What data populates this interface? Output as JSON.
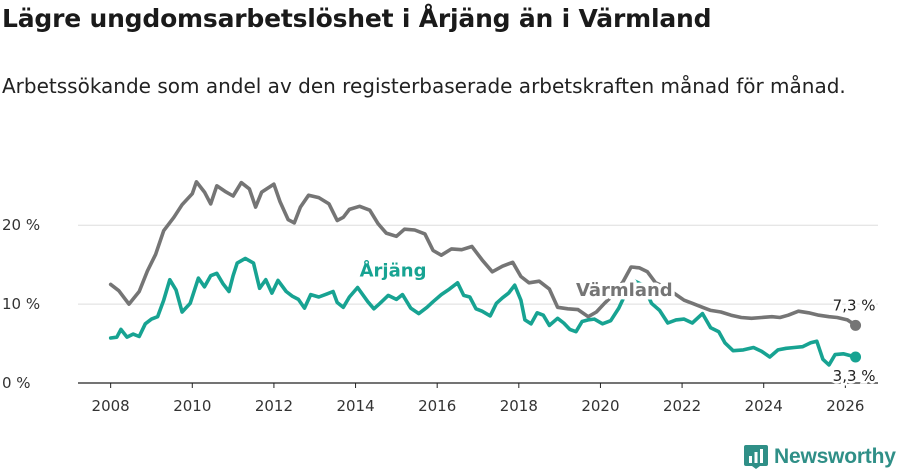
{
  "header": {
    "title": "Lägre ungdomsarbetslöshet i Årjäng än i Värmland",
    "subtitle": "Arbetssökande som andel av den registerbaserade arbetskraften månad för månad."
  },
  "branding": {
    "name": "Newsworthy",
    "icon": "newsworthy-logo-icon"
  },
  "colors": {
    "arjang": "#17a392",
    "varmland": "#757575",
    "grid": "#dddddd",
    "axis": "#222222"
  },
  "chart_data": {
    "type": "line",
    "title": "Lägre ungdomsarbetslöshet i Årjäng än i Värmland",
    "subtitle": "Arbetssökande som andel av den registerbaserade arbetskraften månad för månad.",
    "xlabel": "",
    "ylabel": "",
    "xlim": [
      2007.2,
      2026.8
    ],
    "ylim": [
      0,
      27
    ],
    "y_ticks": [
      0,
      10,
      20
    ],
    "y_tick_labels": [
      "0 %",
      "10 %",
      "20 %"
    ],
    "x_ticks": [
      2008,
      2010,
      2012,
      2014,
      2016,
      2018,
      2020,
      2022,
      2024,
      2026
    ],
    "x_tick_labels": [
      "2008",
      "2010",
      "2012",
      "2014",
      "2016",
      "2018",
      "2020",
      "2022",
      "2024",
      "2026"
    ],
    "grid": true,
    "legend": "inline labels",
    "series": [
      {
        "name": "Värmland",
        "label": "Värmland",
        "color": "#757575",
        "end_label": "7,3 %",
        "points": [
          [
            2008.0,
            12.5
          ],
          [
            2008.2,
            11.7
          ],
          [
            2008.45,
            10.0
          ],
          [
            2008.7,
            11.6
          ],
          [
            2008.9,
            14.2
          ],
          [
            2009.1,
            16.3
          ],
          [
            2009.3,
            19.3
          ],
          [
            2009.55,
            21.0
          ],
          [
            2009.75,
            22.6
          ],
          [
            2010.0,
            24.0
          ],
          [
            2010.1,
            25.5
          ],
          [
            2010.3,
            24.2
          ],
          [
            2010.45,
            22.7
          ],
          [
            2010.6,
            25.0
          ],
          [
            2010.8,
            24.3
          ],
          [
            2011.0,
            23.7
          ],
          [
            2011.2,
            25.4
          ],
          [
            2011.4,
            24.6
          ],
          [
            2011.55,
            22.3
          ],
          [
            2011.7,
            24.2
          ],
          [
            2011.85,
            24.7
          ],
          [
            2012.0,
            25.2
          ],
          [
            2012.15,
            23.0
          ],
          [
            2012.35,
            20.7
          ],
          [
            2012.5,
            20.3
          ],
          [
            2012.65,
            22.3
          ],
          [
            2012.85,
            23.8
          ],
          [
            2013.1,
            23.5
          ],
          [
            2013.35,
            22.7
          ],
          [
            2013.55,
            20.6
          ],
          [
            2013.7,
            21.0
          ],
          [
            2013.85,
            22.0
          ],
          [
            2014.1,
            22.4
          ],
          [
            2014.35,
            21.9
          ],
          [
            2014.55,
            20.2
          ],
          [
            2014.75,
            19.0
          ],
          [
            2015.0,
            18.6
          ],
          [
            2015.2,
            19.5
          ],
          [
            2015.45,
            19.4
          ],
          [
            2015.7,
            18.9
          ],
          [
            2015.9,
            16.8
          ],
          [
            2016.1,
            16.2
          ],
          [
            2016.35,
            17.0
          ],
          [
            2016.6,
            16.9
          ],
          [
            2016.85,
            17.3
          ],
          [
            2017.1,
            15.6
          ],
          [
            2017.35,
            14.1
          ],
          [
            2017.6,
            14.8
          ],
          [
            2017.85,
            15.3
          ],
          [
            2018.05,
            13.5
          ],
          [
            2018.25,
            12.7
          ],
          [
            2018.5,
            12.9
          ],
          [
            2018.75,
            11.9
          ],
          [
            2018.95,
            9.6
          ],
          [
            2019.2,
            9.4
          ],
          [
            2019.45,
            9.3
          ],
          [
            2019.7,
            8.4
          ],
          [
            2019.9,
            9.0
          ],
          [
            2020.1,
            10.1
          ],
          [
            2020.3,
            11.1
          ],
          [
            2020.55,
            12.8
          ],
          [
            2020.75,
            14.7
          ],
          [
            2020.95,
            14.6
          ],
          [
            2021.15,
            14.1
          ],
          [
            2021.35,
            12.7
          ],
          [
            2021.6,
            12.1
          ],
          [
            2021.85,
            11.2
          ],
          [
            2022.05,
            10.5
          ],
          [
            2022.25,
            10.1
          ],
          [
            2022.5,
            9.6
          ],
          [
            2022.7,
            9.2
          ],
          [
            2022.95,
            9.0
          ],
          [
            2023.2,
            8.6
          ],
          [
            2023.45,
            8.3
          ],
          [
            2023.7,
            8.2
          ],
          [
            2023.95,
            8.3
          ],
          [
            2024.2,
            8.4
          ],
          [
            2024.4,
            8.3
          ],
          [
            2024.6,
            8.6
          ],
          [
            2024.85,
            9.1
          ],
          [
            2025.1,
            8.9
          ],
          [
            2025.35,
            8.6
          ],
          [
            2025.6,
            8.4
          ],
          [
            2025.8,
            8.3
          ],
          [
            2026.05,
            8.0
          ],
          [
            2026.25,
            7.3
          ]
        ]
      },
      {
        "name": "Årjäng",
        "label": "Årjäng",
        "color": "#17a392",
        "end_label": "3,3 %",
        "points": [
          [
            2008.0,
            5.7
          ],
          [
            2008.15,
            5.8
          ],
          [
            2008.25,
            6.8
          ],
          [
            2008.4,
            5.8
          ],
          [
            2008.55,
            6.2
          ],
          [
            2008.7,
            5.9
          ],
          [
            2008.85,
            7.5
          ],
          [
            2009.0,
            8.1
          ],
          [
            2009.15,
            8.4
          ],
          [
            2009.3,
            10.5
          ],
          [
            2009.45,
            13.1
          ],
          [
            2009.6,
            11.8
          ],
          [
            2009.75,
            9.0
          ],
          [
            2009.95,
            10.1
          ],
          [
            2010.15,
            13.3
          ],
          [
            2010.3,
            12.2
          ],
          [
            2010.45,
            13.6
          ],
          [
            2010.6,
            13.9
          ],
          [
            2010.75,
            12.6
          ],
          [
            2010.9,
            11.6
          ],
          [
            2011.0,
            13.6
          ],
          [
            2011.1,
            15.2
          ],
          [
            2011.3,
            15.8
          ],
          [
            2011.5,
            15.2
          ],
          [
            2011.65,
            12.0
          ],
          [
            2011.8,
            13.1
          ],
          [
            2011.95,
            11.4
          ],
          [
            2012.1,
            13.0
          ],
          [
            2012.3,
            11.6
          ],
          [
            2012.45,
            11.0
          ],
          [
            2012.6,
            10.6
          ],
          [
            2012.75,
            9.5
          ],
          [
            2012.9,
            11.2
          ],
          [
            2013.1,
            10.9
          ],
          [
            2013.3,
            11.3
          ],
          [
            2013.45,
            11.6
          ],
          [
            2013.55,
            10.2
          ],
          [
            2013.7,
            9.6
          ],
          [
            2013.85,
            10.9
          ],
          [
            2014.05,
            12.1
          ],
          [
            2014.3,
            10.3
          ],
          [
            2014.45,
            9.4
          ],
          [
            2014.6,
            10.1
          ],
          [
            2014.8,
            11.1
          ],
          [
            2015.0,
            10.6
          ],
          [
            2015.15,
            11.2
          ],
          [
            2015.35,
            9.5
          ],
          [
            2015.55,
            8.8
          ],
          [
            2015.75,
            9.6
          ],
          [
            2015.9,
            10.3
          ],
          [
            2016.1,
            11.2
          ],
          [
            2016.3,
            11.9
          ],
          [
            2016.5,
            12.7
          ],
          [
            2016.65,
            11.1
          ],
          [
            2016.8,
            10.9
          ],
          [
            2016.95,
            9.4
          ],
          [
            2017.1,
            9.1
          ],
          [
            2017.3,
            8.5
          ],
          [
            2017.45,
            10.1
          ],
          [
            2017.6,
            10.8
          ],
          [
            2017.75,
            11.4
          ],
          [
            2017.9,
            12.4
          ],
          [
            2018.05,
            10.5
          ],
          [
            2018.15,
            8.0
          ],
          [
            2018.3,
            7.5
          ],
          [
            2018.45,
            8.9
          ],
          [
            2018.6,
            8.6
          ],
          [
            2018.75,
            7.3
          ],
          [
            2018.95,
            8.2
          ],
          [
            2019.1,
            7.6
          ],
          [
            2019.25,
            6.8
          ],
          [
            2019.4,
            6.5
          ],
          [
            2019.55,
            7.8
          ],
          [
            2019.7,
            8.0
          ],
          [
            2019.85,
            8.1
          ],
          [
            2020.05,
            7.5
          ],
          [
            2020.25,
            7.9
          ],
          [
            2020.45,
            9.5
          ],
          [
            2020.65,
            11.7
          ],
          [
            2020.85,
            12.9
          ],
          [
            2021.05,
            12.4
          ],
          [
            2021.25,
            10.1
          ],
          [
            2021.45,
            9.2
          ],
          [
            2021.65,
            7.6
          ],
          [
            2021.85,
            8.0
          ],
          [
            2022.05,
            8.1
          ],
          [
            2022.25,
            7.6
          ],
          [
            2022.5,
            8.8
          ],
          [
            2022.7,
            7.0
          ],
          [
            2022.9,
            6.5
          ],
          [
            2023.05,
            5.1
          ],
          [
            2023.25,
            4.1
          ],
          [
            2023.5,
            4.2
          ],
          [
            2023.75,
            4.5
          ],
          [
            2023.95,
            4.0
          ],
          [
            2024.15,
            3.3
          ],
          [
            2024.35,
            4.2
          ],
          [
            2024.55,
            4.4
          ],
          [
            2024.75,
            4.5
          ],
          [
            2024.95,
            4.6
          ],
          [
            2025.15,
            5.1
          ],
          [
            2025.3,
            5.3
          ],
          [
            2025.45,
            3.0
          ],
          [
            2025.6,
            2.3
          ],
          [
            2025.75,
            3.6
          ],
          [
            2025.95,
            3.7
          ],
          [
            2026.1,
            3.5
          ],
          [
            2026.25,
            3.3
          ]
        ]
      }
    ],
    "annotations": [
      {
        "text": "Årjäng",
        "series": "Årjäng",
        "x": 2014.1,
        "y": 13.5
      },
      {
        "text": "Värmland",
        "series": "Värmland",
        "x": 2019.4,
        "y": 11.0
      }
    ]
  }
}
